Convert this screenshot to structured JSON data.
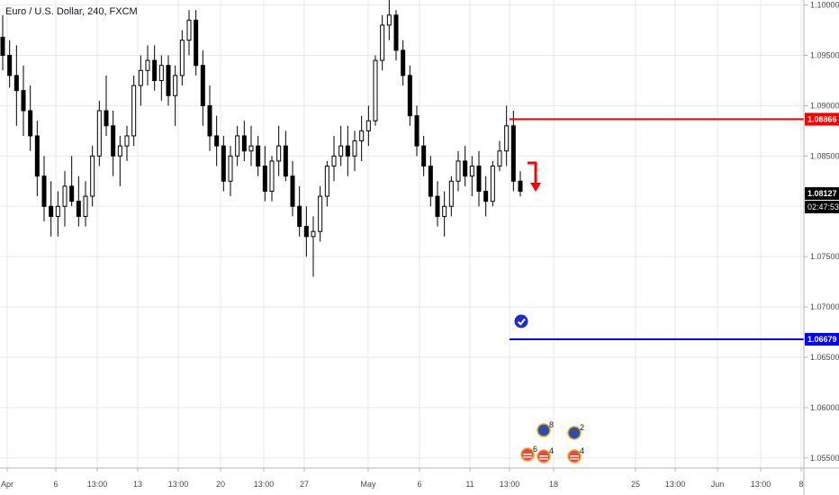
{
  "symbol_title": "Euro / U.S. Dollar, 240, FXCM",
  "colors": {
    "candle": "#000000",
    "grid": "#e6e9ee",
    "resistance": "#ff0000",
    "support": "#0000ff",
    "axis_text": "#4a4a4a"
  },
  "chart_data": {
    "type": "candlestick",
    "title": "Euro / U.S. Dollar, 240, FXCM",
    "ylim": [
      1.054,
      1.1005
    ],
    "y_ticks": [
      "1.10000",
      "1.09500",
      "1.09000",
      "1.08500",
      "1.08000",
      "1.07500",
      "1.07000",
      "1.06500",
      "1.06000",
      "1.05500"
    ],
    "x_ticks": [
      "Apr",
      "6",
      "13:00",
      "13",
      "13:00",
      "20",
      "13:00",
      "27",
      "May",
      "6",
      "11",
      "13:00",
      "18",
      "25",
      "13:00",
      "Jun",
      "13:00",
      "8"
    ],
    "grid": true,
    "candles": [
      [
        1.0968,
        1.099,
        1.0935,
        1.095
      ],
      [
        1.095,
        1.0965,
        1.0918,
        1.093
      ],
      [
        1.093,
        1.096,
        1.088,
        1.0915
      ],
      [
        1.0915,
        1.094,
        1.087,
        1.0895
      ],
      [
        1.0895,
        1.092,
        1.0855,
        1.087
      ],
      [
        1.087,
        1.0885,
        1.081,
        1.083
      ],
      [
        1.083,
        1.085,
        1.0785,
        1.08
      ],
      [
        1.08,
        1.0825,
        1.077,
        1.079
      ],
      [
        1.079,
        1.0815,
        1.077,
        1.08
      ],
      [
        1.08,
        1.0835,
        1.078,
        1.082
      ],
      [
        1.082,
        1.085,
        1.08,
        1.0805
      ],
      [
        1.0805,
        1.083,
        1.078,
        1.079
      ],
      [
        1.079,
        1.0825,
        1.078,
        1.081
      ],
      [
        1.081,
        1.086,
        1.08,
        1.085
      ],
      [
        1.085,
        1.0905,
        1.084,
        1.0895
      ],
      [
        1.0895,
        1.093,
        1.087,
        1.088
      ],
      [
        1.088,
        1.0895,
        1.083,
        1.085
      ],
      [
        1.085,
        1.087,
        1.082,
        1.086
      ],
      [
        1.086,
        1.088,
        1.0845,
        1.087
      ],
      [
        1.087,
        1.093,
        1.086,
        1.092
      ],
      [
        1.092,
        1.095,
        1.09,
        1.0935
      ],
      [
        1.0935,
        1.096,
        1.092,
        1.0945
      ],
      [
        1.0945,
        1.096,
        1.0915,
        1.0925
      ],
      [
        1.0925,
        1.095,
        1.0905,
        1.094
      ],
      [
        1.094,
        1.095,
        1.09,
        1.091
      ],
      [
        1.091,
        1.094,
        1.088,
        1.093
      ],
      [
        1.093,
        1.0975,
        1.092,
        1.0965
      ],
      [
        1.0965,
        1.0995,
        1.095,
        1.0985
      ],
      [
        1.0985,
        1.0995,
        1.093,
        1.094
      ],
      [
        1.094,
        1.0955,
        1.088,
        1.09
      ],
      [
        1.09,
        1.092,
        1.0855,
        1.087
      ],
      [
        1.087,
        1.089,
        1.084,
        1.086
      ],
      [
        1.086,
        1.087,
        1.0815,
        1.0825
      ],
      [
        1.0825,
        1.086,
        1.081,
        1.085
      ],
      [
        1.085,
        1.088,
        1.084,
        1.087
      ],
      [
        1.087,
        1.0885,
        1.0845,
        1.0855
      ],
      [
        1.0855,
        1.088,
        1.084,
        1.086
      ],
      [
        1.086,
        1.087,
        1.083,
        1.084
      ],
      [
        1.084,
        1.086,
        1.0805,
        1.0815
      ],
      [
        1.0815,
        1.085,
        1.0805,
        1.0845
      ],
      [
        1.0845,
        1.088,
        1.083,
        1.086
      ],
      [
        1.086,
        1.0875,
        1.0825,
        1.083
      ],
      [
        1.083,
        1.0845,
        1.079,
        1.08
      ],
      [
        1.08,
        1.082,
        1.077,
        1.078
      ],
      [
        1.078,
        1.08,
        1.075,
        1.077
      ],
      [
        1.077,
        1.079,
        1.073,
        1.0775
      ],
      [
        1.0775,
        1.082,
        1.0765,
        1.081
      ],
      [
        1.081,
        1.0845,
        1.08,
        1.084
      ],
      [
        1.084,
        1.087,
        1.0825,
        1.085
      ],
      [
        1.085,
        1.088,
        1.084,
        1.086
      ],
      [
        1.086,
        1.088,
        1.083,
        1.085
      ],
      [
        1.085,
        1.0875,
        1.0835,
        1.0865
      ],
      [
        1.0865,
        1.089,
        1.0845,
        1.0875
      ],
      [
        1.0875,
        1.09,
        1.086,
        1.0885
      ],
      [
        1.0885,
        1.095,
        1.088,
        1.0945
      ],
      [
        1.0945,
        1.099,
        1.0935,
        1.098
      ],
      [
        1.098,
        1.1005,
        1.0965,
        1.099
      ],
      [
        1.099,
        1.0995,
        1.0945,
        1.0955
      ],
      [
        1.0955,
        1.0965,
        1.092,
        1.093
      ],
      [
        1.093,
        1.094,
        1.088,
        1.089
      ],
      [
        1.089,
        1.09,
        1.085,
        1.086
      ],
      [
        1.086,
        1.087,
        1.083,
        1.084
      ],
      [
        1.084,
        1.085,
        1.08,
        1.081
      ],
      [
        1.081,
        1.0825,
        1.078,
        1.079
      ],
      [
        1.079,
        1.0815,
        1.077,
        1.08
      ],
      [
        1.08,
        1.083,
        1.079,
        1.0825
      ],
      [
        1.0825,
        1.0855,
        1.0815,
        1.0845
      ],
      [
        1.0845,
        1.086,
        1.082,
        1.083
      ],
      [
        1.083,
        1.085,
        1.081,
        1.084
      ],
      [
        1.084,
        1.0855,
        1.08,
        1.0815
      ],
      [
        1.0815,
        1.083,
        1.079,
        1.0805
      ],
      [
        1.0805,
        1.0845,
        1.08,
        1.084
      ],
      [
        1.084,
        1.0865,
        1.0835,
        1.0855
      ],
      [
        1.0855,
        1.09,
        1.084,
        1.088
      ],
      [
        1.088,
        1.0895,
        1.0815,
        1.0825
      ],
      [
        1.0825,
        1.0835,
        1.081,
        1.0815
      ]
    ],
    "lines": [
      {
        "label": "1.08866",
        "value": 1.08866,
        "color": "#ff0000"
      },
      {
        "label": "1.06679",
        "value": 1.06679,
        "color": "#0000ff"
      }
    ],
    "last_price": {
      "label": "1.08127",
      "value": 1.08127
    },
    "countdown": "02:47:53",
    "event_badges": [
      "6",
      "8",
      "4",
      "2",
      "4"
    ]
  }
}
